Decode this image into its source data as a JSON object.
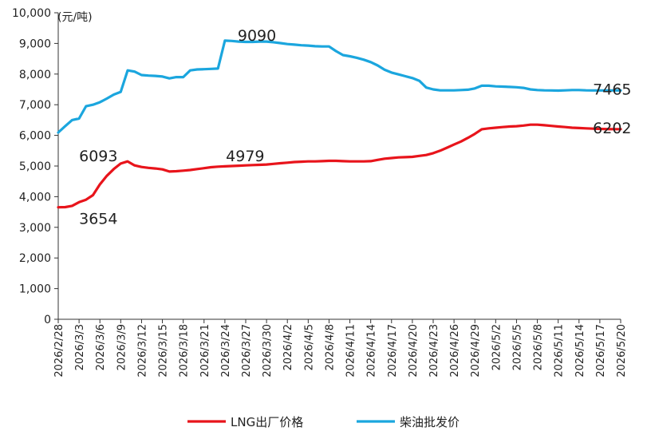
{
  "chart_data": {
    "type": "line",
    "unit_label": "(元/吨)",
    "ylim": [
      0,
      10000
    ],
    "yticks": [
      0,
      1000,
      2000,
      3000,
      4000,
      5000,
      6000,
      7000,
      8000,
      9000,
      10000
    ],
    "ytick_labels": [
      "0",
      "1,000",
      "2,000",
      "3,000",
      "4,000",
      "5,000",
      "6,000",
      "7,000",
      "8,000",
      "9,000",
      "10,000"
    ],
    "xtick_labels": [
      "2026/2/28",
      "2026/3/3",
      "2026/3/6",
      "2026/3/9",
      "2026/3/12",
      "2026/3/15",
      "2026/3/18",
      "2026/3/21",
      "2026/3/24",
      "2026/3/27",
      "2026/3/30",
      "2026/4/2",
      "2026/4/5",
      "2026/4/8",
      "2026/4/11",
      "2026/4/14",
      "2026/4/17",
      "2026/4/20",
      "2026/4/23",
      "2026/4/26",
      "2026/4/29",
      "2026/5/2",
      "2026/5/5",
      "2026/5/8",
      "2026/5/11",
      "2026/5/14",
      "2026/5/17",
      "2026/5/20"
    ],
    "grid": false,
    "legend_position": "bottom-center",
    "series": [
      {
        "name": "LNG出厂价格",
        "color": "#e8141b",
        "points": [
          [
            "2026/2/28",
            3654
          ],
          [
            "2026/3/1",
            3660
          ],
          [
            "2026/3/2",
            3700
          ],
          [
            "2026/3/3",
            3820
          ],
          [
            "2026/3/4",
            3900
          ],
          [
            "2026/3/5",
            4050
          ],
          [
            "2026/3/6",
            4400
          ],
          [
            "2026/3/7",
            4680
          ],
          [
            "2026/3/8",
            4900
          ],
          [
            "2026/3/9",
            5080
          ],
          [
            "2026/3/10",
            5150
          ],
          [
            "2026/3/11",
            5020
          ],
          [
            "2026/3/12",
            4970
          ],
          [
            "2026/3/13",
            4940
          ],
          [
            "2026/3/14",
            4920
          ],
          [
            "2026/3/15",
            4890
          ],
          [
            "2026/3/16",
            4820
          ],
          [
            "2026/3/17",
            4830
          ],
          [
            "2026/3/18",
            4850
          ],
          [
            "2026/3/19",
            4870
          ],
          [
            "2026/3/20",
            4900
          ],
          [
            "2026/3/21",
            4930
          ],
          [
            "2026/3/22",
            4960
          ],
          [
            "2026/3/23",
            4979
          ],
          [
            "2026/3/24",
            4990
          ],
          [
            "2026/3/25",
            5000
          ],
          [
            "2026/3/26",
            5010
          ],
          [
            "2026/3/27",
            5020
          ],
          [
            "2026/3/28",
            5030
          ],
          [
            "2026/3/29",
            5040
          ],
          [
            "2026/3/30",
            5050
          ],
          [
            "2026/3/31",
            5070
          ],
          [
            "2026/4/1",
            5090
          ],
          [
            "2026/4/2",
            5110
          ],
          [
            "2026/4/3",
            5130
          ],
          [
            "2026/4/4",
            5140
          ],
          [
            "2026/4/5",
            5150
          ],
          [
            "2026/4/6",
            5150
          ],
          [
            "2026/4/7",
            5160
          ],
          [
            "2026/4/8",
            5170
          ],
          [
            "2026/4/9",
            5170
          ],
          [
            "2026/4/10",
            5160
          ],
          [
            "2026/4/11",
            5150
          ],
          [
            "2026/4/12",
            5150
          ],
          [
            "2026/4/13",
            5150
          ],
          [
            "2026/4/14",
            5160
          ],
          [
            "2026/4/15",
            5200
          ],
          [
            "2026/4/16",
            5240
          ],
          [
            "2026/4/17",
            5260
          ],
          [
            "2026/4/18",
            5280
          ],
          [
            "2026/4/19",
            5290
          ],
          [
            "2026/4/20",
            5300
          ],
          [
            "2026/4/21",
            5330
          ],
          [
            "2026/4/22",
            5360
          ],
          [
            "2026/4/23",
            5420
          ],
          [
            "2026/4/24",
            5500
          ],
          [
            "2026/4/25",
            5600
          ],
          [
            "2026/4/26",
            5700
          ],
          [
            "2026/4/27",
            5800
          ],
          [
            "2026/4/28",
            5920
          ],
          [
            "2026/4/29",
            6050
          ],
          [
            "2026/4/30",
            6200
          ],
          [
            "2026/5/1",
            6230
          ],
          [
            "2026/5/2",
            6250
          ],
          [
            "2026/5/3",
            6270
          ],
          [
            "2026/5/4",
            6290
          ],
          [
            "2026/5/5",
            6300
          ],
          [
            "2026/5/6",
            6320
          ],
          [
            "2026/5/7",
            6350
          ],
          [
            "2026/5/8",
            6350
          ],
          [
            "2026/5/9",
            6330
          ],
          [
            "2026/5/10",
            6310
          ],
          [
            "2026/5/11",
            6290
          ],
          [
            "2026/5/12",
            6270
          ],
          [
            "2026/5/13",
            6250
          ],
          [
            "2026/5/14",
            6240
          ],
          [
            "2026/5/15",
            6230
          ],
          [
            "2026/5/16",
            6220
          ],
          [
            "2026/5/17",
            6210
          ],
          [
            "2026/5/18",
            6205
          ],
          [
            "2026/5/19",
            6202
          ],
          [
            "2026/5/20",
            6202
          ]
        ]
      },
      {
        "name": "柴油批发价",
        "color": "#1ba6de",
        "points": [
          [
            "2026/2/28",
            6093
          ],
          [
            "2026/3/1",
            6300
          ],
          [
            "2026/3/2",
            6500
          ],
          [
            "2026/3/3",
            6550
          ],
          [
            "2026/3/4",
            6950
          ],
          [
            "2026/3/5",
            7000
          ],
          [
            "2026/3/6",
            7080
          ],
          [
            "2026/3/7",
            7200
          ],
          [
            "2026/3/8",
            7330
          ],
          [
            "2026/3/9",
            7420
          ],
          [
            "2026/3/10",
            8120
          ],
          [
            "2026/3/11",
            8080
          ],
          [
            "2026/3/12",
            7970
          ],
          [
            "2026/3/13",
            7950
          ],
          [
            "2026/3/14",
            7940
          ],
          [
            "2026/3/15",
            7920
          ],
          [
            "2026/3/16",
            7860
          ],
          [
            "2026/3/17",
            7900
          ],
          [
            "2026/3/18",
            7900
          ],
          [
            "2026/3/19",
            8120
          ],
          [
            "2026/3/20",
            8150
          ],
          [
            "2026/3/21",
            8160
          ],
          [
            "2026/3/22",
            8170
          ],
          [
            "2026/3/23",
            8180
          ],
          [
            "2026/3/24",
            9090
          ],
          [
            "2026/3/25",
            9080
          ],
          [
            "2026/3/26",
            9060
          ],
          [
            "2026/3/27",
            9050
          ],
          [
            "2026/3/28",
            9050
          ],
          [
            "2026/3/29",
            9060
          ],
          [
            "2026/3/30",
            9060
          ],
          [
            "2026/3/31",
            9040
          ],
          [
            "2026/4/1",
            9010
          ],
          [
            "2026/4/2",
            8980
          ],
          [
            "2026/4/3",
            8960
          ],
          [
            "2026/4/4",
            8940
          ],
          [
            "2026/4/5",
            8930
          ],
          [
            "2026/4/6",
            8910
          ],
          [
            "2026/4/7",
            8900
          ],
          [
            "2026/4/8",
            8900
          ],
          [
            "2026/4/9",
            8750
          ],
          [
            "2026/4/10",
            8620
          ],
          [
            "2026/4/11",
            8580
          ],
          [
            "2026/4/12",
            8530
          ],
          [
            "2026/4/13",
            8470
          ],
          [
            "2026/4/14",
            8390
          ],
          [
            "2026/4/15",
            8280
          ],
          [
            "2026/4/16",
            8140
          ],
          [
            "2026/4/17",
            8050
          ],
          [
            "2026/4/18",
            7990
          ],
          [
            "2026/4/19",
            7930
          ],
          [
            "2026/4/20",
            7870
          ],
          [
            "2026/4/21",
            7780
          ],
          [
            "2026/4/22",
            7560
          ],
          [
            "2026/4/23",
            7500
          ],
          [
            "2026/4/24",
            7470
          ],
          [
            "2026/4/25",
            7470
          ],
          [
            "2026/4/26",
            7470
          ],
          [
            "2026/4/27",
            7480
          ],
          [
            "2026/4/28",
            7490
          ],
          [
            "2026/4/29",
            7530
          ],
          [
            "2026/4/30",
            7620
          ],
          [
            "2026/5/1",
            7620
          ],
          [
            "2026/5/2",
            7600
          ],
          [
            "2026/5/3",
            7590
          ],
          [
            "2026/5/4",
            7580
          ],
          [
            "2026/5/5",
            7570
          ],
          [
            "2026/5/6",
            7550
          ],
          [
            "2026/5/7",
            7500
          ],
          [
            "2026/5/8",
            7480
          ],
          [
            "2026/5/9",
            7470
          ],
          [
            "2026/5/10",
            7465
          ],
          [
            "2026/5/11",
            7460
          ],
          [
            "2026/5/12",
            7470
          ],
          [
            "2026/5/13",
            7480
          ],
          [
            "2026/5/14",
            7480
          ],
          [
            "2026/5/15",
            7470
          ],
          [
            "2026/5/16",
            7465
          ],
          [
            "2026/5/17",
            7465
          ],
          [
            "2026/5/18",
            7465
          ],
          [
            "2026/5/19",
            7465
          ],
          [
            "2026/5/20",
            7465
          ]
        ]
      }
    ],
    "annotations": [
      {
        "text": "6093",
        "x": "2026/3/3",
        "y": 6093
      },
      {
        "text": "9090",
        "x": "2026/3/24",
        "y": 9090
      },
      {
        "text": "7465",
        "x": "2026/5/16",
        "y": 7465
      },
      {
        "text": "3654",
        "x": "2026/3/3",
        "y": 3654
      },
      {
        "text": "4979",
        "x": "2026/3/23",
        "y": 4979
      },
      {
        "text": "6202",
        "x": "2026/5/16",
        "y": 6202
      }
    ]
  }
}
